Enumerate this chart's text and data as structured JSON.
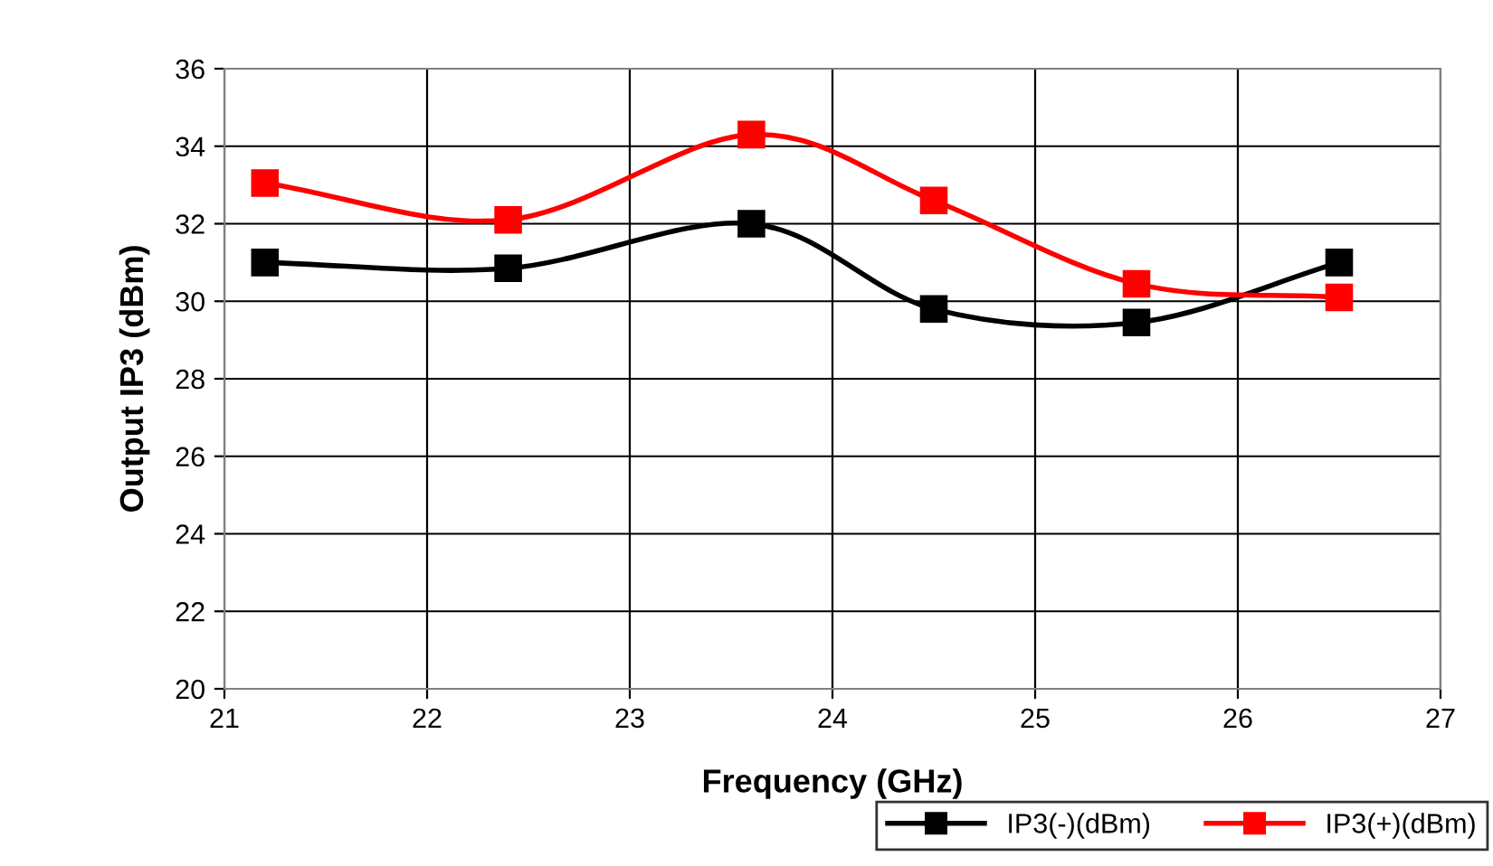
{
  "chart_data": {
    "type": "line",
    "xlabel": "Frequency (GHz)",
    "ylabel": "Output IP3 (dBm)",
    "x": [
      21.2,
      22.4,
      23.6,
      24.5,
      25.5,
      26.5
    ],
    "series": [
      {
        "name": "IP3(-)(dBm)",
        "color": "#000000",
        "values": [
          31.0,
          30.85,
          32.0,
          29.8,
          29.45,
          31.0
        ]
      },
      {
        "name": "IP3(+)(dBm)",
        "color": "#ff0000",
        "values": [
          33.05,
          32.1,
          34.3,
          32.6,
          30.45,
          30.1
        ]
      }
    ],
    "xlim": [
      21,
      27
    ],
    "xticks": [
      21,
      22,
      23,
      24,
      25,
      26,
      27
    ],
    "ylim": [
      20,
      36
    ],
    "yticks": [
      20,
      22,
      24,
      26,
      28,
      30,
      32,
      34,
      36
    ],
    "grid": true,
    "legend": "bottom right",
    "marker": "square",
    "line_style": "solid"
  }
}
